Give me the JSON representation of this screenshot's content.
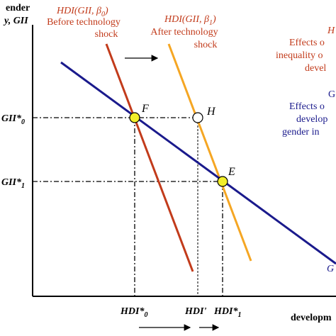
{
  "colors": {
    "axis": "#000000",
    "hdi0_line": "#c23b1b",
    "hdi1_line": "#f5a623",
    "gii_line": "#1a1a8c",
    "point_fill": "#f2ee2a",
    "red_text": "#c23b1b",
    "blue_text": "#1a1a8c"
  },
  "y_axis_title": {
    "line1": "ender",
    "line2": "y, GII"
  },
  "x_axis_title": "developm",
  "y_ticks": [
    {
      "base": "GII*",
      "sub": "0"
    },
    {
      "base": "GII*",
      "sub": "1"
    }
  ],
  "x_ticks": [
    {
      "base": "HDI*",
      "sub": "0"
    },
    {
      "base": "HDI'",
      "sub": ""
    },
    {
      "base": "HDI*",
      "sub": "1"
    }
  ],
  "labels": {
    "hdi0_title": "HDI(GII, β",
    "hdi0_title_sub": "0",
    "hdi0_title_close": ")",
    "hdi0_desc": [
      "Before technology",
      "shock"
    ],
    "hdi1_title": "HDI(GII, β",
    "hdi1_title_sub": "1",
    "hdi1_title_close": ")",
    "hdi1_desc": [
      "After technology",
      "shock"
    ]
  },
  "points": {
    "F": "F",
    "H": "H",
    "E": "E"
  },
  "right_legend_red": {
    "title": "H",
    "lines": [
      "Effects o",
      "inequality o",
      "devel"
    ]
  },
  "right_legend_blue": {
    "title": "G",
    "lines": [
      "Effects o",
      "develop",
      "gender in"
    ]
  },
  "right_curve_label": "G"
}
